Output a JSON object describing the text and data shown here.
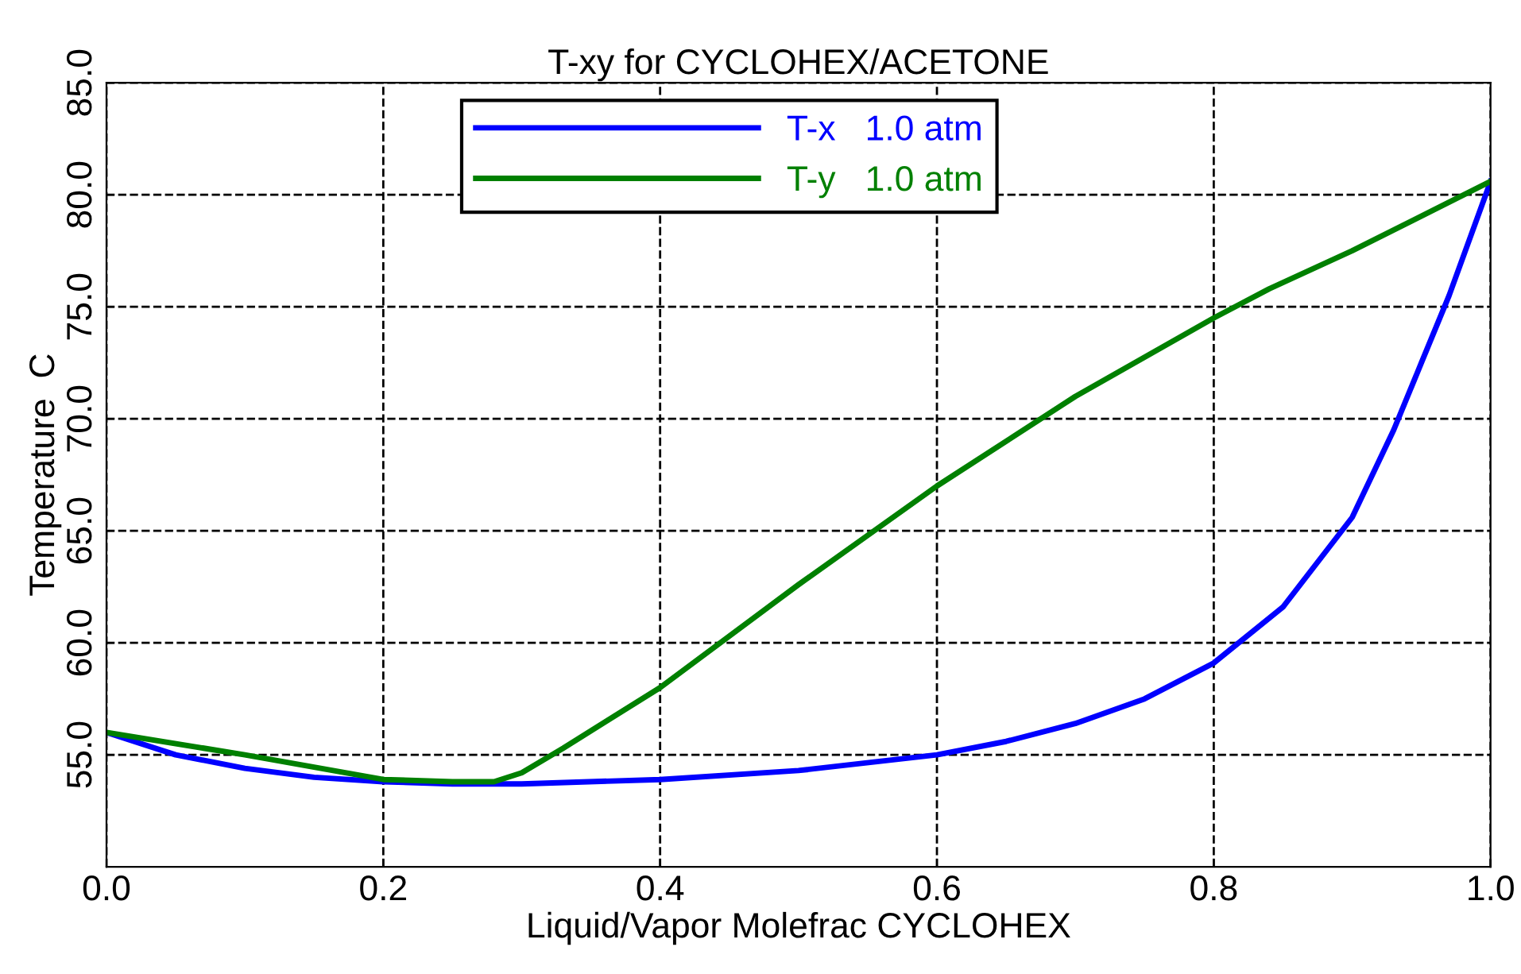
{
  "chart_data": {
    "type": "line",
    "title": "T-xy for CYCLOHEX/ACETONE",
    "xlabel": "Liquid/Vapor Molefrac CYCLOHEX",
    "ylabel": "Temperature  C",
    "series": [
      {
        "name": "T-x   1.0 atm",
        "color": "#0000ff",
        "x": [
          0.0,
          0.05,
          0.1,
          0.15,
          0.2,
          0.25,
          0.3,
          0.4,
          0.5,
          0.6,
          0.65,
          0.7,
          0.75,
          0.8,
          0.85,
          0.9,
          0.93,
          0.95,
          0.97,
          1.0
        ],
        "values": [
          56.0,
          55.0,
          54.4,
          54.0,
          53.8,
          53.7,
          53.7,
          53.9,
          54.3,
          55.0,
          55.6,
          56.4,
          57.5,
          59.1,
          61.6,
          65.6,
          69.5,
          72.5,
          75.5,
          80.6
        ]
      },
      {
        "name": "T-y   1.0 atm",
        "color": "#008000",
        "x": [
          0.0,
          0.1,
          0.2,
          0.25,
          0.28,
          0.3,
          0.33,
          0.4,
          0.5,
          0.6,
          0.7,
          0.8,
          0.84,
          0.9,
          1.0
        ],
        "values": [
          56.0,
          55.0,
          53.9,
          53.8,
          53.8,
          54.2,
          55.3,
          58.0,
          62.6,
          67.0,
          71.0,
          74.5,
          75.8,
          77.5,
          80.6
        ]
      }
    ],
    "xlim": [
      0.0,
      1.0
    ],
    "xticks": [
      {
        "value": 0.0,
        "label": "0.0"
      },
      0.2,
      0.4,
      0.6,
      0.8,
      {
        "value": 1.0,
        "label": "1.0"
      }
    ],
    "ylim": [
      50,
      85
    ],
    "yticks": [
      {
        "value": 55,
        "label": "55.0"
      },
      {
        "value": 60,
        "label": "60.0"
      },
      {
        "value": 65,
        "label": "65.0"
      },
      {
        "value": 70,
        "label": "70.0"
      },
      {
        "value": 75,
        "label": "75.0"
      },
      {
        "value": 80,
        "label": "80.0"
      },
      {
        "value": 85,
        "label": "85.0"
      }
    ],
    "grid": true,
    "legend": "top",
    "line_style": "solid"
  }
}
